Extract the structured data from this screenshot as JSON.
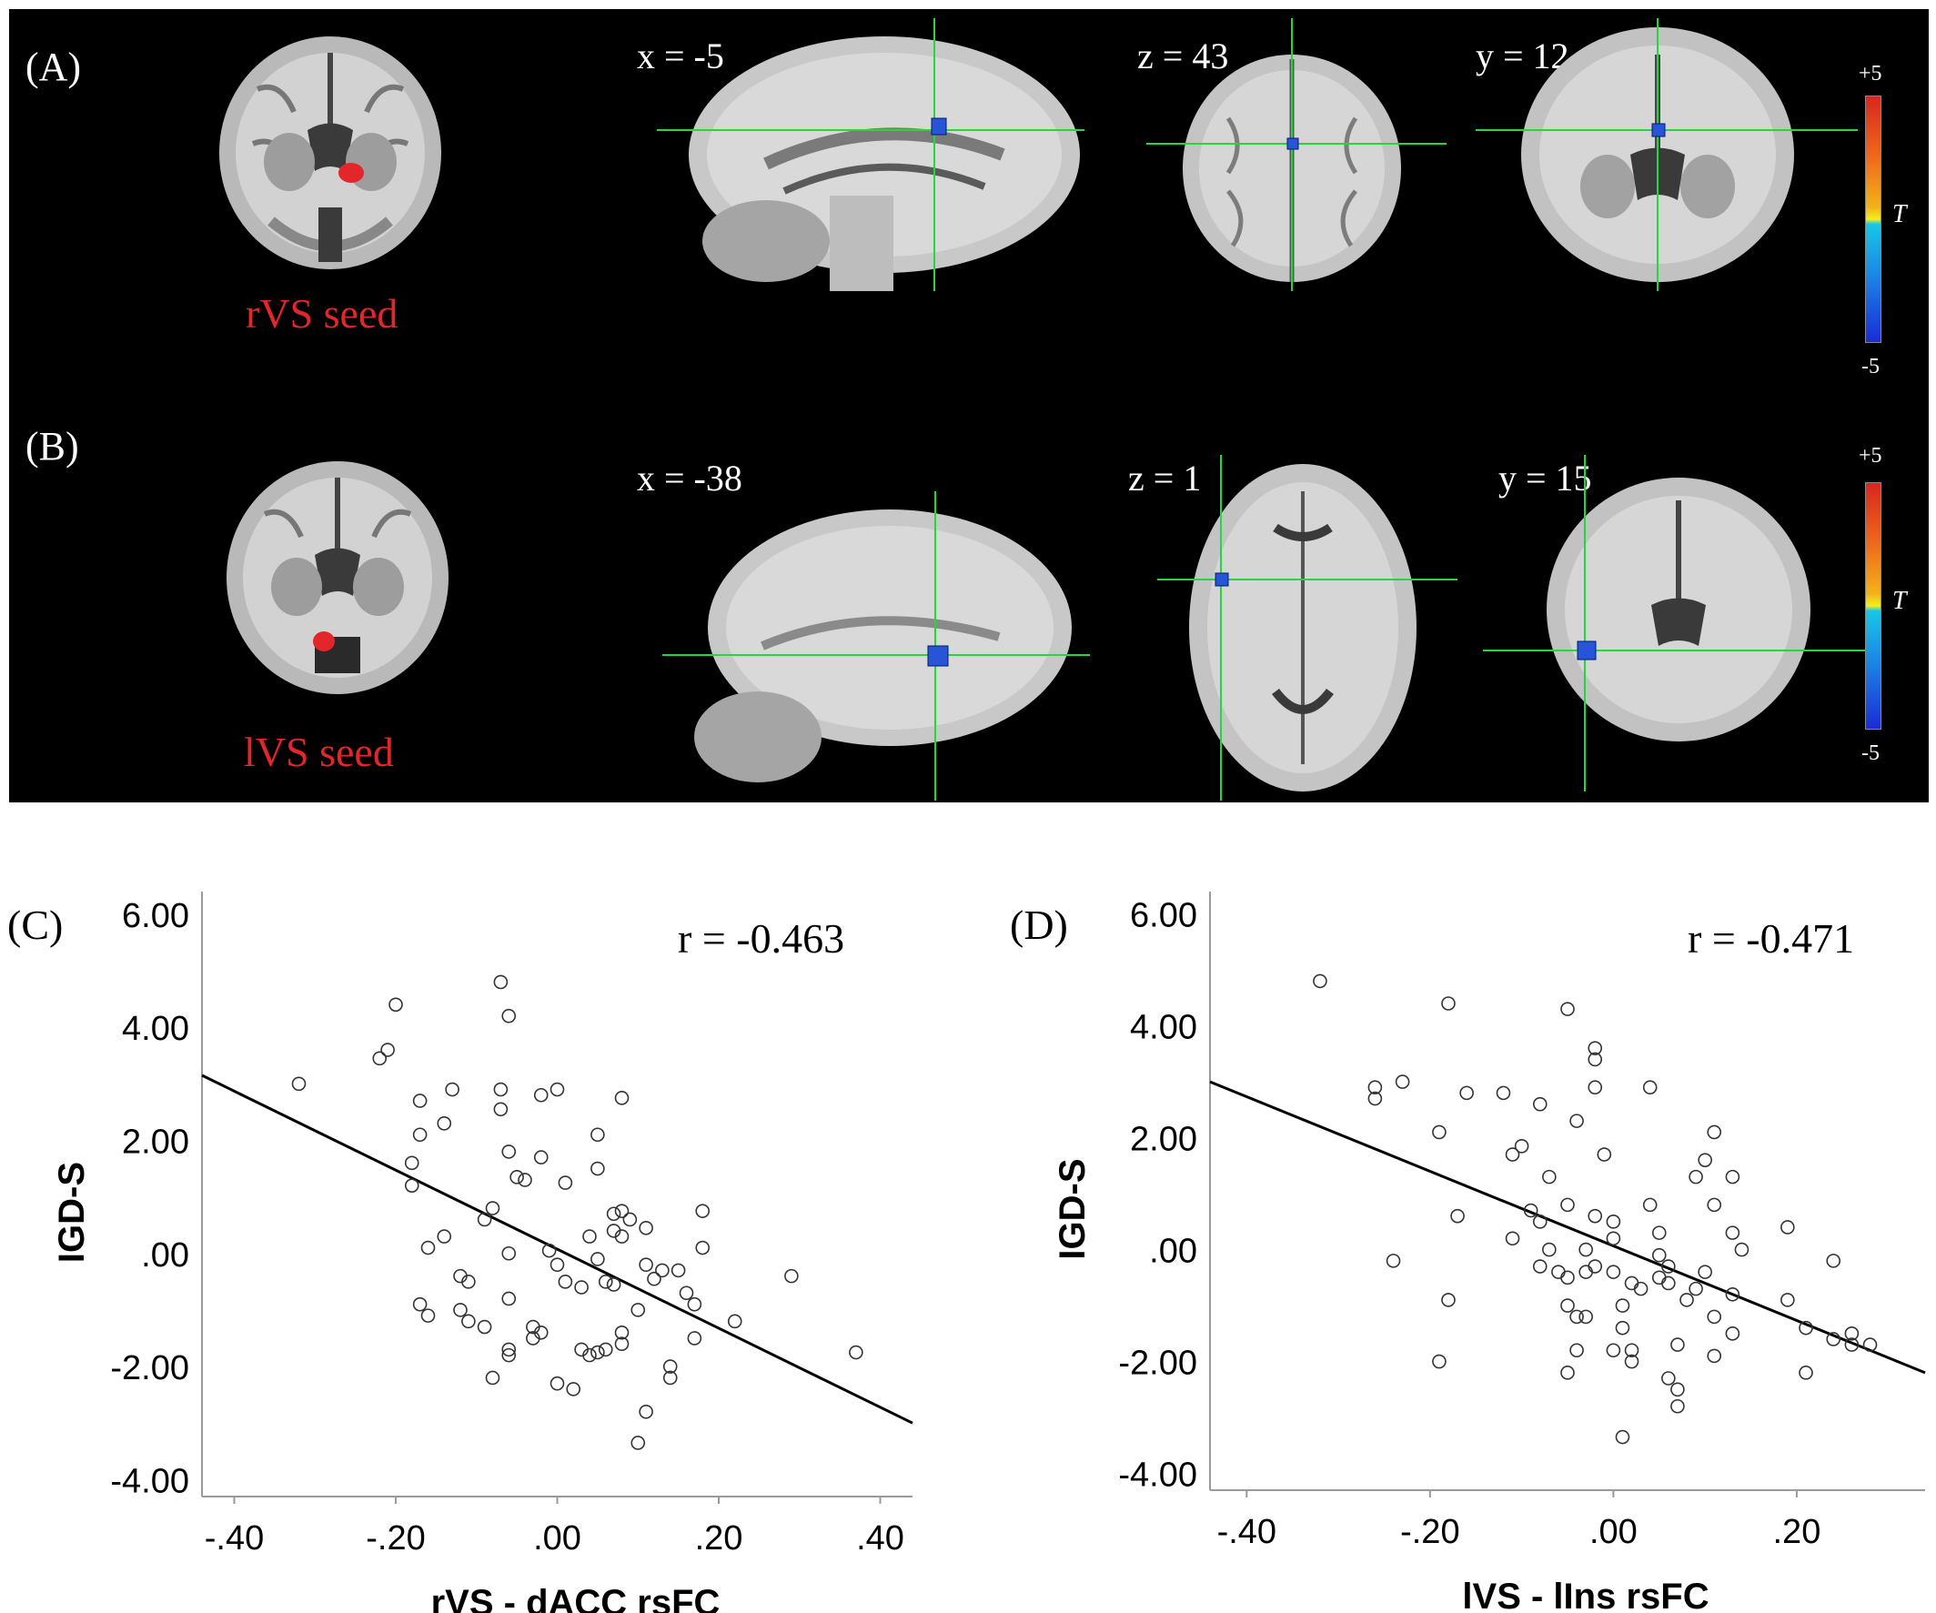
{
  "panel_labels": {
    "a": "(A)",
    "b": "(B)",
    "c": "(C)",
    "d": "(D)"
  },
  "row_a": {
    "seed_label": "rVS seed",
    "slices": [
      "x = -5",
      "z = 43",
      "y = 12"
    ],
    "colorbar": {
      "max": "+5",
      "min": "-5",
      "symbol": "T"
    }
  },
  "row_b": {
    "seed_label": "lVS seed",
    "slices": [
      "x = -38",
      "z = 1",
      "y = 15"
    ],
    "colorbar": {
      "max": "+5",
      "min": "-5",
      "symbol": "T"
    }
  },
  "colors": {
    "seed": "#e3262a",
    "cluster": "#2855d8",
    "crosshair": "#22d83a",
    "panel_bg": "#000000"
  },
  "chart_data": [
    {
      "type": "scatter",
      "panel": "(C)",
      "xlabel": "rVS - dACC rsFC",
      "ylabel": "IGD-S",
      "annotation": "r = -0.463",
      "xlim": [
        -0.44,
        0.44
      ],
      "ylim": [
        -4.3,
        6.4
      ],
      "xticks": [
        -0.4,
        -0.2,
        0.0,
        0.2,
        0.4
      ],
      "xtick_labels": [
        "-.40",
        "-.20",
        ".00",
        ".20",
        ".40"
      ],
      "yticks": [
        6,
        4,
        2,
        0,
        -2,
        -4
      ],
      "ytick_labels": [
        "6.00",
        "4.00",
        "2.00",
        ".00",
        "-2.00",
        "-4.00"
      ],
      "fit_line": {
        "x": [
          -0.44,
          0.44
        ],
        "y": [
          3.15,
          -3.0
        ]
      },
      "points": [
        [
          -0.32,
          3.0
        ],
        [
          -0.22,
          3.45
        ],
        [
          -0.21,
          3.6
        ],
        [
          -0.2,
          4.4
        ],
        [
          -0.17,
          2.7
        ],
        [
          -0.17,
          2.1
        ],
        [
          -0.18,
          1.6
        ],
        [
          -0.18,
          1.2
        ],
        [
          -0.13,
          2.9
        ],
        [
          -0.14,
          2.3
        ],
        [
          -0.16,
          0.1
        ],
        [
          -0.14,
          0.3
        ],
        [
          -0.12,
          -0.4
        ],
        [
          -0.11,
          -0.5
        ],
        [
          -0.17,
          -0.9
        ],
        [
          -0.16,
          -1.1
        ],
        [
          -0.12,
          -1.0
        ],
        [
          -0.11,
          -1.2
        ],
        [
          -0.09,
          -1.3
        ],
        [
          -0.07,
          4.8
        ],
        [
          -0.06,
          4.2
        ],
        [
          -0.07,
          2.9
        ],
        [
          -0.07,
          2.55
        ],
        [
          -0.06,
          1.8
        ],
        [
          -0.05,
          1.35
        ],
        [
          -0.04,
          1.3
        ],
        [
          -0.08,
          0.8
        ],
        [
          -0.09,
          0.6
        ],
        [
          -0.06,
          0.0
        ],
        [
          -0.06,
          -0.8
        ],
        [
          -0.06,
          -1.7
        ],
        [
          -0.06,
          -1.8
        ],
        [
          -0.08,
          -2.2
        ],
        [
          -0.03,
          -1.3
        ],
        [
          -0.03,
          -1.5
        ],
        [
          -0.02,
          -1.4
        ],
        [
          -0.02,
          2.8
        ],
        [
          0.0,
          2.9
        ],
        [
          -0.02,
          1.7
        ],
        [
          0.01,
          1.25
        ],
        [
          -0.01,
          0.05
        ],
        [
          0.0,
          -0.2
        ],
        [
          0.01,
          -0.5
        ],
        [
          0.03,
          -0.6
        ],
        [
          0.0,
          -2.3
        ],
        [
          0.02,
          -2.4
        ],
        [
          0.03,
          -1.7
        ],
        [
          0.04,
          -1.8
        ],
        [
          0.05,
          -1.75
        ],
        [
          0.06,
          -1.7
        ],
        [
          0.05,
          2.1
        ],
        [
          0.05,
          1.5
        ],
        [
          0.04,
          0.3
        ],
        [
          0.05,
          -0.1
        ],
        [
          0.06,
          -0.5
        ],
        [
          0.07,
          -0.55
        ],
        [
          0.07,
          0.4
        ],
        [
          0.08,
          0.3
        ],
        [
          0.07,
          0.7
        ],
        [
          0.08,
          0.75
        ],
        [
          0.09,
          0.6
        ],
        [
          0.08,
          2.75
        ],
        [
          0.08,
          -1.4
        ],
        [
          0.08,
          -1.6
        ],
        [
          0.1,
          -1.0
        ],
        [
          0.11,
          0.45
        ],
        [
          0.11,
          -0.2
        ],
        [
          0.12,
          -0.45
        ],
        [
          0.13,
          -0.3
        ],
        [
          0.11,
          -2.8
        ],
        [
          0.1,
          -3.35
        ],
        [
          0.14,
          -2.0
        ],
        [
          0.14,
          -2.2
        ],
        [
          0.15,
          -0.3
        ],
        [
          0.16,
          -0.7
        ],
        [
          0.17,
          -0.9
        ],
        [
          0.18,
          0.75
        ],
        [
          0.18,
          0.1
        ],
        [
          0.17,
          -1.5
        ],
        [
          0.22,
          -1.2
        ],
        [
          0.29,
          -0.4
        ],
        [
          0.37,
          -1.75
        ]
      ]
    },
    {
      "type": "scatter",
      "panel": "(D)",
      "xlabel": "lVS - lIns rsFC",
      "ylabel": "IGD-S",
      "annotation": "r = -0.471",
      "xlim": [
        -0.44,
        0.34
      ],
      "ylim": [
        -4.3,
        6.4
      ],
      "xticks": [
        -0.4,
        -0.2,
        0.0,
        0.2
      ],
      "xtick_labels": [
        "-.40",
        "-.20",
        ".00",
        ".20"
      ],
      "yticks": [
        6,
        4,
        2,
        0,
        -2,
        -4
      ],
      "ytick_labels": [
        "6.00",
        "4.00",
        "2.00",
        ".00",
        "-2.00",
        "-4.00"
      ],
      "fit_line": {
        "x": [
          -0.44,
          0.34
        ],
        "y": [
          3.0,
          -2.2
        ]
      },
      "points": [
        [
          -0.32,
          4.8
        ],
        [
          -0.26,
          2.9
        ],
        [
          -0.26,
          2.7
        ],
        [
          -0.23,
          3.0
        ],
        [
          -0.24,
          -0.2
        ],
        [
          -0.19,
          2.1
        ],
        [
          -0.18,
          4.4
        ],
        [
          -0.17,
          0.6
        ],
        [
          -0.18,
          -0.9
        ],
        [
          -0.19,
          -2.0
        ],
        [
          -0.16,
          2.8
        ],
        [
          -0.12,
          2.8
        ],
        [
          -0.11,
          1.7
        ],
        [
          -0.1,
          1.85
        ],
        [
          -0.11,
          0.2
        ],
        [
          -0.09,
          0.7
        ],
        [
          -0.08,
          0.5
        ],
        [
          -0.08,
          2.6
        ],
        [
          -0.07,
          1.3
        ],
        [
          -0.08,
          -0.3
        ],
        [
          -0.06,
          -0.4
        ],
        [
          -0.07,
          0.0
        ],
        [
          -0.05,
          -0.5
        ],
        [
          -0.05,
          -1.0
        ],
        [
          -0.04,
          -1.2
        ],
        [
          -0.04,
          -1.8
        ],
        [
          -0.05,
          -2.2
        ],
        [
          -0.05,
          4.3
        ],
        [
          -0.04,
          2.3
        ],
        [
          -0.05,
          0.8
        ],
        [
          -0.03,
          0.0
        ],
        [
          -0.03,
          -0.4
        ],
        [
          -0.02,
          -0.3
        ],
        [
          -0.03,
          -1.2
        ],
        [
          -0.02,
          3.6
        ],
        [
          -0.02,
          3.4
        ],
        [
          -0.02,
          2.9
        ],
        [
          -0.01,
          1.7
        ],
        [
          -0.02,
          0.6
        ],
        [
          0.0,
          0.5
        ],
        [
          0.0,
          0.2
        ],
        [
          0.0,
          -0.4
        ],
        [
          0.01,
          -1.0
        ],
        [
          0.01,
          -1.4
        ],
        [
          0.0,
          -1.8
        ],
        [
          0.02,
          -1.8
        ],
        [
          0.02,
          -2.0
        ],
        [
          0.01,
          -3.35
        ],
        [
          0.02,
          -0.6
        ],
        [
          0.03,
          -0.7
        ],
        [
          0.04,
          2.9
        ],
        [
          0.04,
          0.8
        ],
        [
          0.05,
          0.3
        ],
        [
          0.05,
          -0.1
        ],
        [
          0.05,
          -0.5
        ],
        [
          0.06,
          -0.3
        ],
        [
          0.06,
          -0.6
        ],
        [
          0.07,
          -1.7
        ],
        [
          0.06,
          -2.3
        ],
        [
          0.07,
          -2.5
        ],
        [
          0.07,
          -2.8
        ],
        [
          0.08,
          -0.9
        ],
        [
          0.09,
          1.3
        ],
        [
          0.1,
          1.6
        ],
        [
          0.11,
          2.1
        ],
        [
          0.11,
          0.8
        ],
        [
          0.1,
          -0.4
        ],
        [
          0.09,
          -0.7
        ],
        [
          0.11,
          -1.2
        ],
        [
          0.11,
          -1.9
        ],
        [
          0.13,
          1.3
        ],
        [
          0.13,
          0.3
        ],
        [
          0.14,
          0.0
        ],
        [
          0.13,
          -0.8
        ],
        [
          0.13,
          -1.5
        ],
        [
          0.19,
          0.4
        ],
        [
          0.19,
          -0.9
        ],
        [
          0.21,
          -1.4
        ],
        [
          0.21,
          -2.2
        ],
        [
          0.24,
          -0.2
        ],
        [
          0.24,
          -1.6
        ],
        [
          0.26,
          -1.5
        ],
        [
          0.26,
          -1.7
        ],
        [
          0.28,
          -1.7
        ]
      ]
    }
  ]
}
